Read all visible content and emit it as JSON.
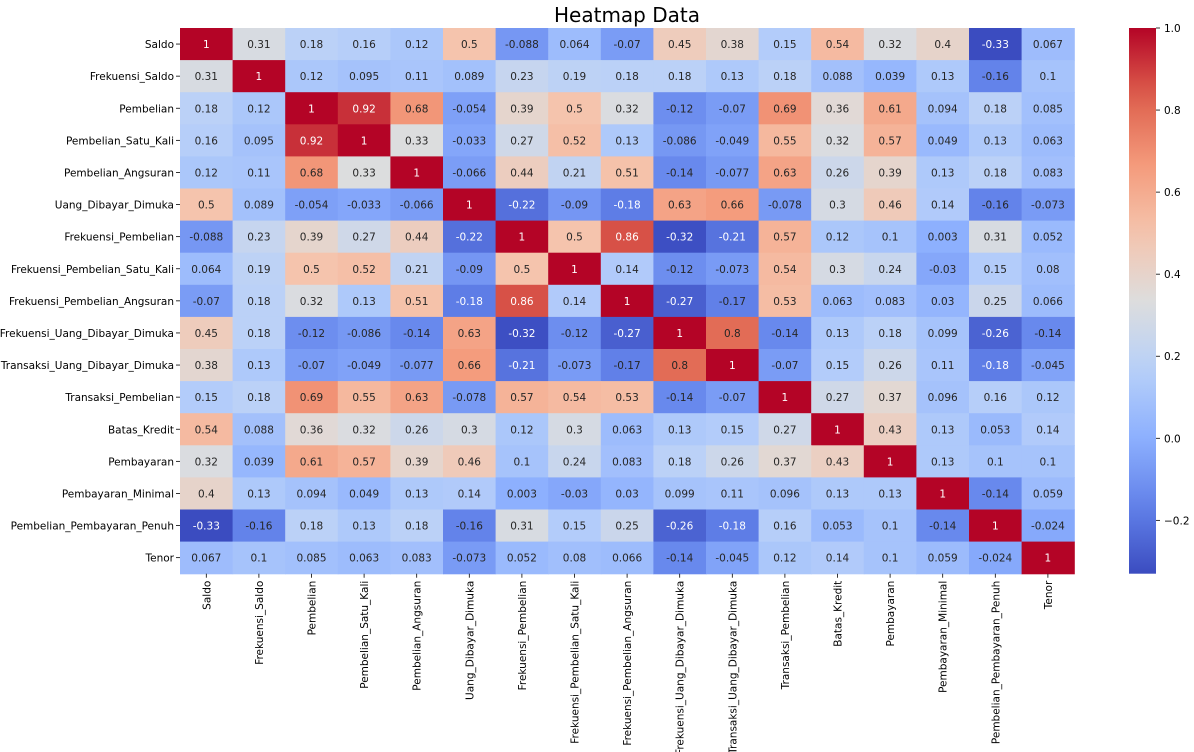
{
  "chart_data": {
    "type": "heatmap",
    "title": "Heatmap Data",
    "xlabel": "",
    "ylabel": "",
    "colormap": "coolwarm",
    "colorbar": {
      "min": -0.33,
      "max": 1.0,
      "ticks": [
        1.0,
        0.8,
        0.6,
        0.4,
        0.2,
        0.0,
        -0.2
      ],
      "tick_labels": [
        "1.0",
        "0.8",
        "0.6",
        "0.4",
        "0.2",
        "0.0",
        "−0.2"
      ]
    },
    "row_labels": [
      "Saldo",
      "Frekuensi_Saldo",
      "Pembelian",
      "Pembelian_Satu_Kali",
      "Pembelian_Angsuran",
      "Uang_Dibayar_Dimuka",
      "Frekuensi_Pembelian",
      "Frekuensi_Pembelian_Satu_Kali",
      "Frekuensi_Pembelian_Angsuran",
      "Frekuensi_Uang_Dibayar_Dimuka",
      "Transaksi_Uang_Dibayar_Dimuka",
      "Transaksi_Pembelian",
      "Batas_Kredit",
      "Pembayaran",
      "Pembayaran_Minimal",
      "Pembelian_Pembayaran_Penuh",
      "Tenor"
    ],
    "col_labels": [
      "Saldo",
      "Frekuensi_Saldo",
      "Pembelian",
      "Pembelian_Satu_Kali",
      "Pembelian_Angsuran",
      "Uang_Dibayar_Dimuka",
      "Frekuensi_Pembelian",
      "Frekuensi_Pembelian_Satu_Kali",
      "Frekuensi_Pembelian_Angsuran",
      "Frekuensi_Uang_Dibayar_Dimuka",
      "Transaksi_Uang_Dibayar_Dimuka",
      "Transaksi_Pembelian",
      "Batas_Kredit",
      "Pembayaran",
      "Pembayaran_Minimal",
      "Pembelian_Pembayaran_Penuh",
      "Tenor"
    ],
    "values": [
      [
        1,
        0.31,
        0.18,
        0.16,
        0.12,
        0.5,
        -0.088,
        0.064,
        -0.07,
        0.45,
        0.38,
        0.15,
        0.54,
        0.32,
        0.4,
        -0.33,
        0.067
      ],
      [
        0.31,
        1,
        0.12,
        0.095,
        0.11,
        0.089,
        0.23,
        0.19,
        0.18,
        0.18,
        0.13,
        0.18,
        0.088,
        0.039,
        0.13,
        -0.16,
        0.1
      ],
      [
        0.18,
        0.12,
        1,
        0.92,
        0.68,
        -0.054,
        0.39,
        0.5,
        0.32,
        -0.12,
        -0.07,
        0.69,
        0.36,
        0.61,
        0.094,
        0.18,
        0.085
      ],
      [
        0.16,
        0.095,
        0.92,
        1,
        0.33,
        -0.033,
        0.27,
        0.52,
        0.13,
        -0.086,
        -0.049,
        0.55,
        0.32,
        0.57,
        0.049,
        0.13,
        0.063
      ],
      [
        0.12,
        0.11,
        0.68,
        0.33,
        1,
        -0.066,
        0.44,
        0.21,
        0.51,
        -0.14,
        -0.077,
        0.63,
        0.26,
        0.39,
        0.13,
        0.18,
        0.083
      ],
      [
        0.5,
        0.089,
        -0.054,
        -0.033,
        -0.066,
        1,
        -0.22,
        -0.09,
        -0.18,
        0.63,
        0.66,
        -0.078,
        0.3,
        0.46,
        0.14,
        -0.16,
        -0.073
      ],
      [
        -0.088,
        0.23,
        0.39,
        0.27,
        0.44,
        -0.22,
        1,
        0.5,
        0.86,
        -0.32,
        -0.21,
        0.57,
        0.12,
        0.1,
        0.003,
        0.31,
        0.052
      ],
      [
        0.064,
        0.19,
        0.5,
        0.52,
        0.21,
        -0.09,
        0.5,
        1,
        0.14,
        -0.12,
        -0.073,
        0.54,
        0.3,
        0.24,
        -0.03,
        0.15,
        0.08
      ],
      [
        -0.07,
        0.18,
        0.32,
        0.13,
        0.51,
        -0.18,
        0.86,
        0.14,
        1,
        -0.27,
        -0.17,
        0.53,
        0.063,
        0.083,
        0.03,
        0.25,
        0.066
      ],
      [
        0.45,
        0.18,
        -0.12,
        -0.086,
        -0.14,
        0.63,
        -0.32,
        -0.12,
        -0.27,
        1,
        0.8,
        -0.14,
        0.13,
        0.18,
        0.099,
        -0.26,
        -0.14
      ],
      [
        0.38,
        0.13,
        -0.07,
        -0.049,
        -0.077,
        0.66,
        -0.21,
        -0.073,
        -0.17,
        0.8,
        1,
        -0.07,
        0.15,
        0.26,
        0.11,
        -0.18,
        -0.045
      ],
      [
        0.15,
        0.18,
        0.69,
        0.55,
        0.63,
        -0.078,
        0.57,
        0.54,
        0.53,
        -0.14,
        -0.07,
        1,
        0.27,
        0.37,
        0.096,
        0.16,
        0.12
      ],
      [
        0.54,
        0.088,
        0.36,
        0.32,
        0.26,
        0.3,
        0.12,
        0.3,
        0.063,
        0.13,
        0.15,
        0.27,
        1,
        0.43,
        0.13,
        0.053,
        0.14
      ],
      [
        0.32,
        0.039,
        0.61,
        0.57,
        0.39,
        0.46,
        0.1,
        0.24,
        0.083,
        0.18,
        0.26,
        0.37,
        0.43,
        1,
        0.13,
        0.1,
        0.1
      ],
      [
        0.4,
        0.13,
        0.094,
        0.049,
        0.13,
        0.14,
        0.003,
        -0.03,
        0.03,
        0.099,
        0.11,
        0.096,
        0.13,
        0.13,
        1,
        -0.14,
        0.059
      ],
      [
        -0.33,
        -0.16,
        0.18,
        0.13,
        0.18,
        -0.16,
        0.31,
        0.15,
        0.25,
        -0.26,
        -0.18,
        0.16,
        0.053,
        0.1,
        -0.14,
        1,
        -0.024
      ],
      [
        0.067,
        0.1,
        0.085,
        0.063,
        0.083,
        -0.073,
        0.052,
        0.08,
        0.066,
        -0.14,
        -0.045,
        0.12,
        0.14,
        0.1,
        0.059,
        -0.024,
        1
      ]
    ]
  }
}
